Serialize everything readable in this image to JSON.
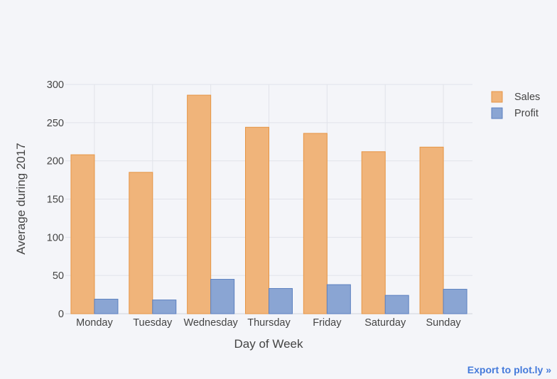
{
  "chart_data": {
    "type": "bar",
    "categories": [
      "Monday",
      "Tuesday",
      "Wednesday",
      "Thursday",
      "Friday",
      "Saturday",
      "Sunday"
    ],
    "series": [
      {
        "name": "Sales",
        "values": [
          208,
          185,
          286,
          244,
          236,
          212,
          218
        ],
        "color": "#f0b47a",
        "stroke": "#e69545"
      },
      {
        "name": "Profit",
        "values": [
          19,
          18,
          45,
          33,
          38,
          24,
          32
        ],
        "color": "#8aa5d3",
        "stroke": "#5b80c0"
      }
    ],
    "xlabel": "Day of Week",
    "ylabel": "Average during 2017",
    "ylim": [
      0,
      300
    ],
    "yticks": [
      0,
      50,
      100,
      150,
      200,
      250,
      300
    ],
    "grid": true,
    "legend_position": "top-right"
  },
  "export_link": "Export to plot.ly »"
}
